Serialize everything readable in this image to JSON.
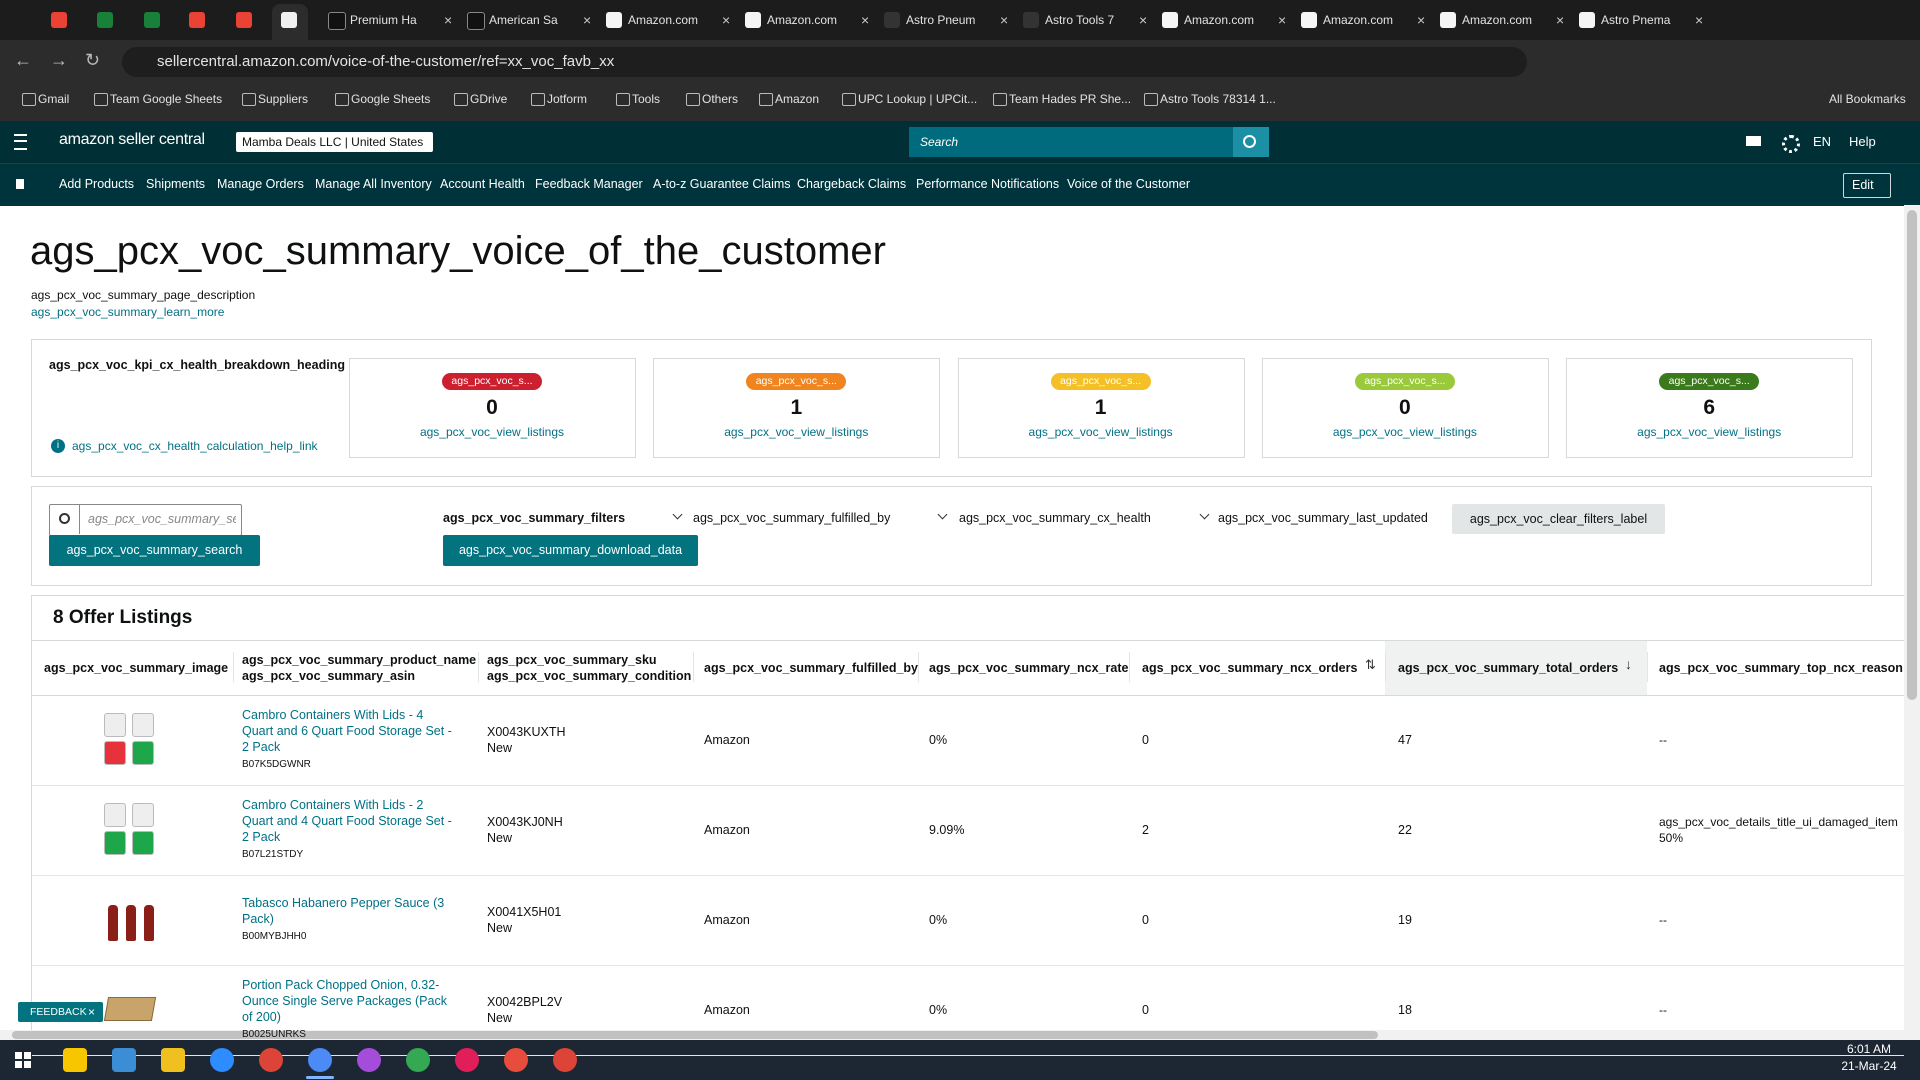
{
  "browser": {
    "tabs": [
      "Premium Ha",
      "American Sa",
      "Amazon.com",
      "Amazon.com",
      "Astro Pneum",
      "Astro Tools 7",
      "Amazon.com",
      "Amazon.com",
      "Amazon.com",
      "Astro Pnema"
    ],
    "url": "sellercentral.amazon.com/voice-of-the-customer/ref=xx_voc_favb_xx",
    "bookmarks": [
      "Gmail",
      "Team Google Sheets",
      "Suppliers",
      "Google Sheets",
      "GDrive",
      "Jotform",
      "Tools",
      "Others",
      "Amazon",
      "UPC Lookup | UPCit...",
      "Team Hades PR She...",
      "Astro Tools 78314 1..."
    ],
    "all_bookmarks": "All Bookmarks"
  },
  "header": {
    "logo": "amazon seller central",
    "account": "Mamba Deals LLC | United States",
    "search_placeholder": "Search",
    "language": "EN",
    "help": "Help",
    "nav": [
      "Add Products",
      "Shipments",
      "Manage Orders",
      "Manage All Inventory",
      "Account Health",
      "Feedback Manager",
      "A-to-z Guarantee Claims",
      "Chargeback Claims",
      "Performance Notifications",
      "Voice of the Customer"
    ],
    "edit": "Edit"
  },
  "page": {
    "title": "ags_pcx_voc_summary_voice_of_the_customer",
    "description": "ags_pcx_voc_summary_page_description",
    "learn_more": "ags_pcx_voc_summary_learn_more"
  },
  "kpi": {
    "heading": "ags_pcx_voc_kpi_cx_health_breakdown_heading",
    "help_link": "ags_pcx_voc_cx_health_calculation_help_link",
    "cards": [
      {
        "badge": "ags_pcx_voc_s...",
        "count": "0",
        "link": "ags_pcx_voc_view_listings"
      },
      {
        "badge": "ags_pcx_voc_s...",
        "count": "1",
        "link": "ags_pcx_voc_view_listings"
      },
      {
        "badge": "ags_pcx_voc_s...",
        "count": "1",
        "link": "ags_pcx_voc_view_listings"
      },
      {
        "badge": "ags_pcx_voc_s...",
        "count": "0",
        "link": "ags_pcx_voc_view_listings"
      },
      {
        "badge": "ags_pcx_voc_s...",
        "count": "6",
        "link": "ags_pcx_voc_view_listings"
      }
    ]
  },
  "filters": {
    "search_placeholder": "ags_pcx_voc_summary_sea",
    "search_button": "ags_pcx_voc_summary_search",
    "filters_label": "ags_pcx_voc_summary_filters",
    "fulfilled_by": "ags_pcx_voc_summary_fulfilled_by",
    "cx_health": "ags_pcx_voc_summary_cx_health",
    "last_updated": "ags_pcx_voc_summary_last_updated",
    "clear": "ags_pcx_voc_clear_filters_label",
    "download": "ags_pcx_voc_summary_download_data"
  },
  "table": {
    "title": "8 Offer Listings",
    "columns": [
      [
        "ags_pcx_voc_summary_image"
      ],
      [
        "ags_pcx_voc_summary_product_name",
        "ags_pcx_voc_summary_asin"
      ],
      [
        "ags_pcx_voc_summary_sku",
        "ags_pcx_voc_summary_condition"
      ],
      [
        "ags_pcx_voc_summary_fulfilled_by"
      ],
      [
        "ags_pcx_voc_summary_ncx_rate"
      ],
      [
        "ags_pcx_voc_summary_ncx_orders"
      ],
      [
        "ags_pcx_voc_summary_total_orders"
      ],
      [
        "ags_pcx_voc_summary_top_ncx_reason"
      ]
    ],
    "rows": [
      {
        "product": "Cambro Containers With Lids - 4 Quart and 6 Quart Food Storage Set - 2 Pack",
        "asin": "B07K5DGWNR",
        "sku": "X0043KUXTH",
        "condition": "New",
        "fulfilled_by": "Amazon",
        "ncx_rate": "0%",
        "ncx_orders": "0",
        "total_orders": "47",
        "top_ncx_reason": [
          "--"
        ]
      },
      {
        "product": "Cambro Containers With Lids - 2 Quart and 4 Quart Food Storage Set - 2 Pack",
        "asin": "B07L21STDY",
        "sku": "X0043KJ0NH",
        "condition": "New",
        "fulfilled_by": "Amazon",
        "ncx_rate": "9.09%",
        "ncx_orders": "2",
        "total_orders": "22",
        "top_ncx_reason": [
          "ags_pcx_voc_details_title_ui_damaged_item",
          "50%"
        ]
      },
      {
        "product": "Tabasco Habanero Pepper Sauce (3 Pack)",
        "asin": "B00MYBJHH0",
        "sku": "X0041X5H01",
        "condition": "New",
        "fulfilled_by": "Amazon",
        "ncx_rate": "0%",
        "ncx_orders": "0",
        "total_orders": "19",
        "top_ncx_reason": [
          "--"
        ]
      },
      {
        "product": "Portion Pack Chopped Onion, 0.32-Ounce Single Serve Packages (Pack of 200)",
        "asin": "B0025UNRKS",
        "sku": "X0042BPL2V",
        "condition": "New",
        "fulfilled_by": "Amazon",
        "ncx_rate": "0%",
        "ncx_orders": "0",
        "total_orders": "18",
        "top_ncx_reason": [
          "--"
        ]
      }
    ]
  },
  "feedback": "FEEDBACK",
  "taskbar": {
    "time": "6:01 AM",
    "date": "21-Mar-24"
  }
}
